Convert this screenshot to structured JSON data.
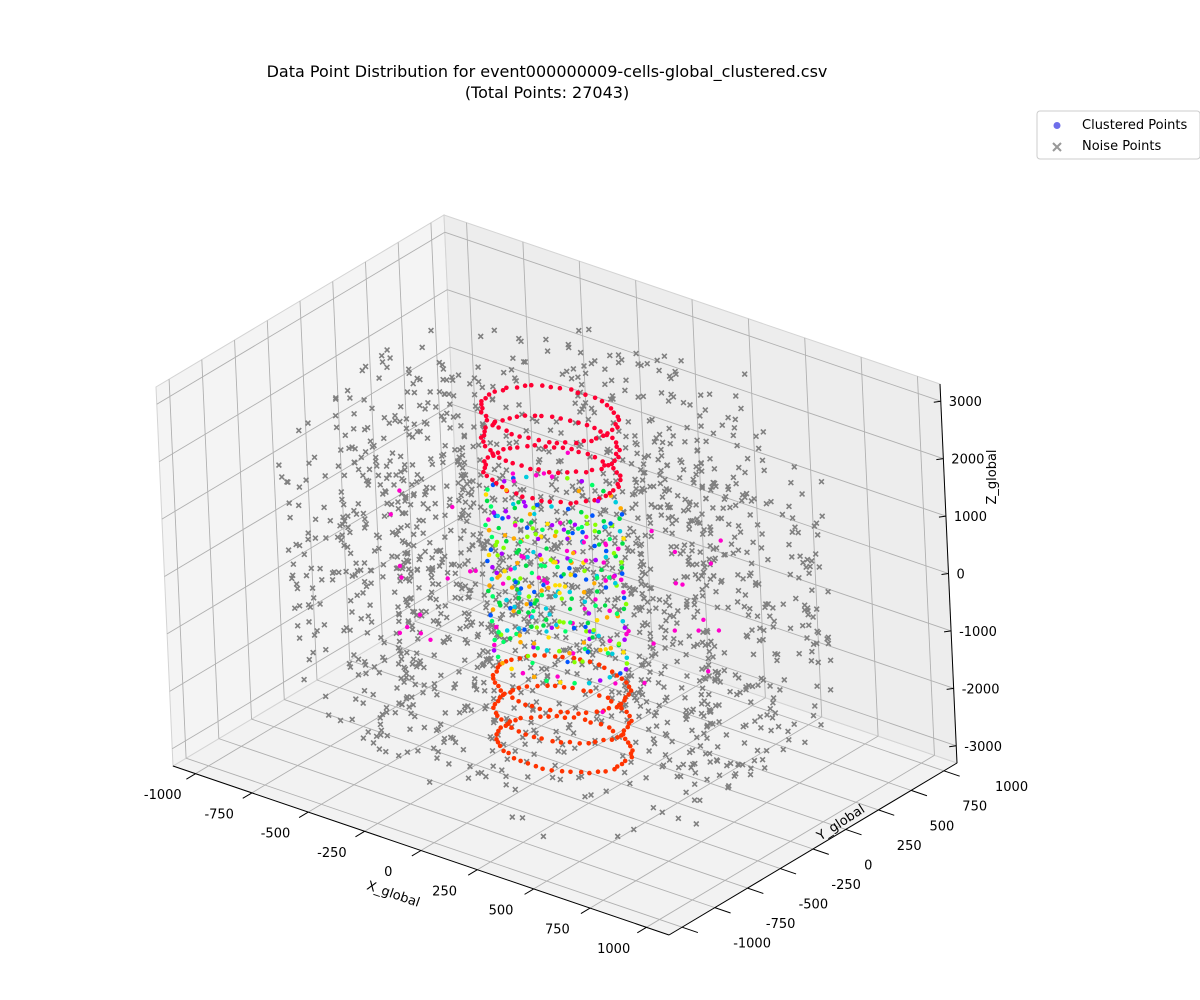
{
  "chart_data": {
    "type": "scatter",
    "title": "Data Point Distribution for event000000009-cells-global_clustered.csv",
    "subtitle": "(Total Points: 27043)",
    "xlabel": "X_global",
    "ylabel": "Y_global",
    "zlabel": "Z_global",
    "xlim": [
      -1100,
      1100
    ],
    "ylim": [
      -1100,
      1100
    ],
    "zlim": [
      -3300,
      3300
    ],
    "xticks": [
      "-1000",
      "-750",
      "-500",
      "-250",
      "0",
      "250",
      "500",
      "750",
      "1000"
    ],
    "yticks": [
      "-1000",
      "-750",
      "-500",
      "-250",
      "0",
      "250",
      "500",
      "750",
      "1000"
    ],
    "zticks": [
      "-3000",
      "-2000",
      "-1000",
      "0",
      "1000",
      "2000",
      "3000"
    ],
    "xtick_values": [
      -1000,
      -750,
      -500,
      -250,
      0,
      250,
      500,
      750,
      1000
    ],
    "ytick_values": [
      -1000,
      -750,
      -500,
      -250,
      0,
      250,
      500,
      750,
      1000
    ],
    "ztick_values": [
      -3000,
      -2000,
      -1000,
      0,
      1000,
      2000,
      3000
    ],
    "legend": {
      "placement": "upper-right",
      "entries": [
        "Clustered Points",
        "Noise Points"
      ]
    },
    "series": [
      {
        "name": "Clustered Points",
        "marker": "o",
        "color": "#5555e6",
        "barrel_radius": 260,
        "barrel_z_range": [
          -2950,
          2800
        ],
        "barrel_layers": 12,
        "cluster_colors": [
          "#ff0033",
          "#ff3300",
          "#00dd44",
          "#00ff66",
          "#ffdd00",
          "#0055ff",
          "#00ccdd",
          "#aa00ff",
          "#ff00cc",
          "#ffaa00",
          "#88ff00"
        ]
      },
      {
        "name": "Noise Points",
        "marker": "x",
        "color": "#808080",
        "shells": [
          {
            "radius": 350,
            "z_range": [
              -2700,
              2400
            ]
          },
          {
            "radius": 600,
            "z_range": [
              -2800,
              2500
            ]
          },
          {
            "radius": 800,
            "z_range": [
              -2600,
              2700
            ]
          },
          {
            "radius": 1000,
            "z_range": [
              -2000,
              2000
            ]
          }
        ]
      }
    ],
    "grid": true,
    "view": {
      "elev": 30,
      "azim": -60
    }
  }
}
